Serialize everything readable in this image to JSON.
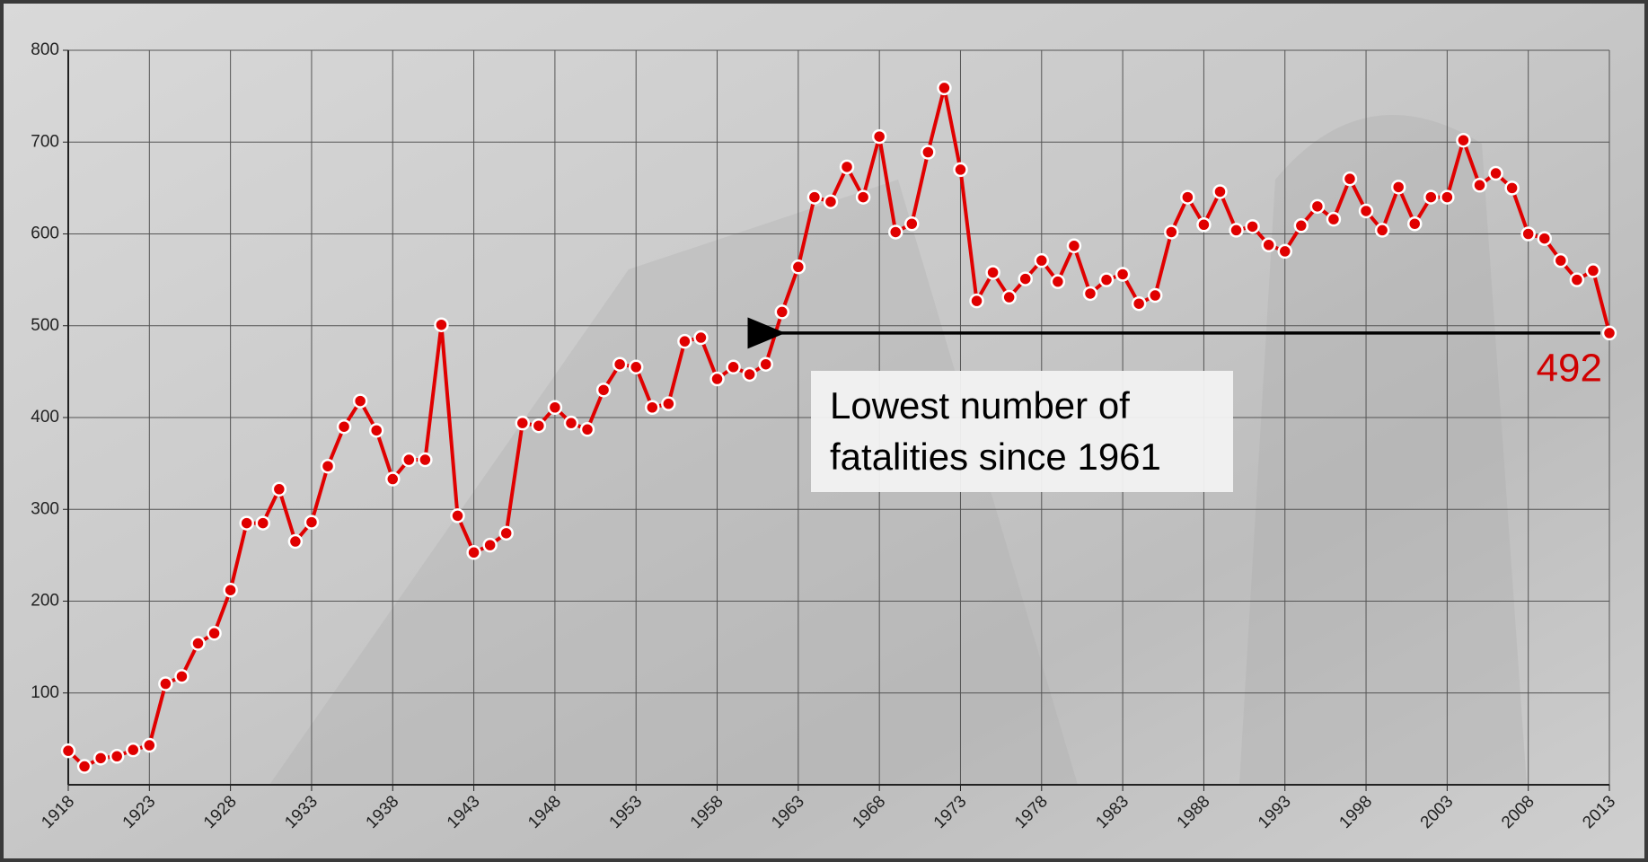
{
  "chart_data": {
    "type": "line",
    "x": [
      1918,
      1919,
      1920,
      1921,
      1922,
      1923,
      1924,
      1925,
      1926,
      1927,
      1928,
      1929,
      1930,
      1931,
      1932,
      1933,
      1934,
      1935,
      1936,
      1937,
      1938,
      1939,
      1940,
      1941,
      1942,
      1943,
      1944,
      1945,
      1946,
      1947,
      1948,
      1949,
      1950,
      1951,
      1952,
      1953,
      1954,
      1955,
      1956,
      1957,
      1958,
      1959,
      1960,
      1961,
      1962,
      1963,
      1964,
      1965,
      1966,
      1967,
      1968,
      1969,
      1970,
      1971,
      1972,
      1973,
      1974,
      1975,
      1976,
      1977,
      1978,
      1979,
      1980,
      1981,
      1982,
      1983,
      1984,
      1985,
      1986,
      1987,
      1988,
      1989,
      1990,
      1991,
      1992,
      1993,
      1994,
      1995,
      1996,
      1997,
      1998,
      1999,
      2000,
      2001,
      2002,
      2003,
      2004,
      2005,
      2006,
      2007,
      2008,
      2009,
      2010,
      2011,
      2012,
      2013
    ],
    "values": [
      37,
      20,
      29,
      31,
      38,
      43,
      110,
      118,
      154,
      165,
      212,
      285,
      285,
      322,
      265,
      286,
      347,
      390,
      418,
      386,
      333,
      354,
      354,
      501,
      293,
      253,
      261,
      274,
      394,
      391,
      411,
      394,
      387,
      430,
      458,
      455,
      411,
      415,
      483,
      487,
      442,
      455,
      447,
      458,
      515,
      564,
      640,
      635,
      673,
      640,
      706,
      602,
      611,
      689,
      759,
      670,
      527,
      558,
      531,
      551,
      571,
      548,
      587,
      535,
      550,
      556,
      524,
      533,
      602,
      640,
      610,
      646,
      604,
      608,
      588,
      581,
      609,
      630,
      616,
      660,
      625,
      604,
      651,
      611,
      640,
      640,
      702,
      653,
      666,
      650,
      600,
      595,
      571,
      550,
      560,
      492
    ],
    "color": "#e00000",
    "xlim": [
      1918,
      2013
    ],
    "xticks": [
      1918,
      1923,
      1928,
      1933,
      1938,
      1943,
      1948,
      1953,
      1958,
      1963,
      1968,
      1973,
      1978,
      1983,
      1988,
      1993,
      1998,
      2003,
      2008,
      2013
    ],
    "ylim": [
      0,
      800
    ],
    "yticks": [
      100,
      200,
      300,
      400,
      500,
      600,
      700,
      800
    ],
    "grid": true,
    "annotation": "Lowest number of fatalities since 1961"
  }
}
